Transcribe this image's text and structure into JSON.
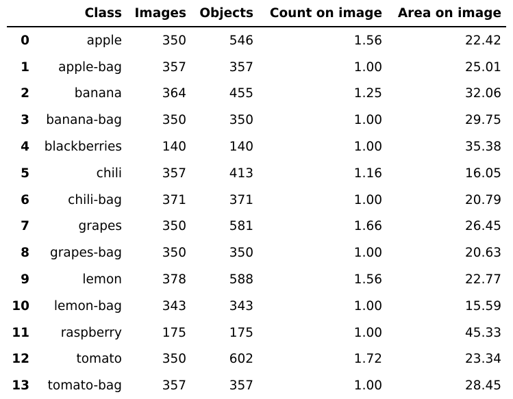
{
  "table": {
    "columns": [
      "",
      "Class",
      "Images",
      "Objects",
      "Count on image",
      "Area on image"
    ],
    "rows": [
      {
        "index": "0",
        "class": "apple",
        "images": "350",
        "objects": "546",
        "count": "1.56",
        "area": "22.42"
      },
      {
        "index": "1",
        "class": "apple-bag",
        "images": "357",
        "objects": "357",
        "count": "1.00",
        "area": "25.01"
      },
      {
        "index": "2",
        "class": "banana",
        "images": "364",
        "objects": "455",
        "count": "1.25",
        "area": "32.06"
      },
      {
        "index": "3",
        "class": "banana-bag",
        "images": "350",
        "objects": "350",
        "count": "1.00",
        "area": "29.75"
      },
      {
        "index": "4",
        "class": "blackberries",
        "images": "140",
        "objects": "140",
        "count": "1.00",
        "area": "35.38"
      },
      {
        "index": "5",
        "class": "chili",
        "images": "357",
        "objects": "413",
        "count": "1.16",
        "area": "16.05"
      },
      {
        "index": "6",
        "class": "chili-bag",
        "images": "371",
        "objects": "371",
        "count": "1.00",
        "area": "20.79"
      },
      {
        "index": "7",
        "class": "grapes",
        "images": "350",
        "objects": "581",
        "count": "1.66",
        "area": "26.45"
      },
      {
        "index": "8",
        "class": "grapes-bag",
        "images": "350",
        "objects": "350",
        "count": "1.00",
        "area": "20.63"
      },
      {
        "index": "9",
        "class": "lemon",
        "images": "378",
        "objects": "588",
        "count": "1.56",
        "area": "22.77"
      },
      {
        "index": "10",
        "class": "lemon-bag",
        "images": "343",
        "objects": "343",
        "count": "1.00",
        "area": "15.59"
      },
      {
        "index": "11",
        "class": "raspberry",
        "images": "175",
        "objects": "175",
        "count": "1.00",
        "area": "45.33"
      },
      {
        "index": "12",
        "class": "tomato",
        "images": "350",
        "objects": "602",
        "count": "1.72",
        "area": "23.34"
      },
      {
        "index": "13",
        "class": "tomato-bag",
        "images": "357",
        "objects": "357",
        "count": "1.00",
        "area": "28.45"
      }
    ]
  }
}
